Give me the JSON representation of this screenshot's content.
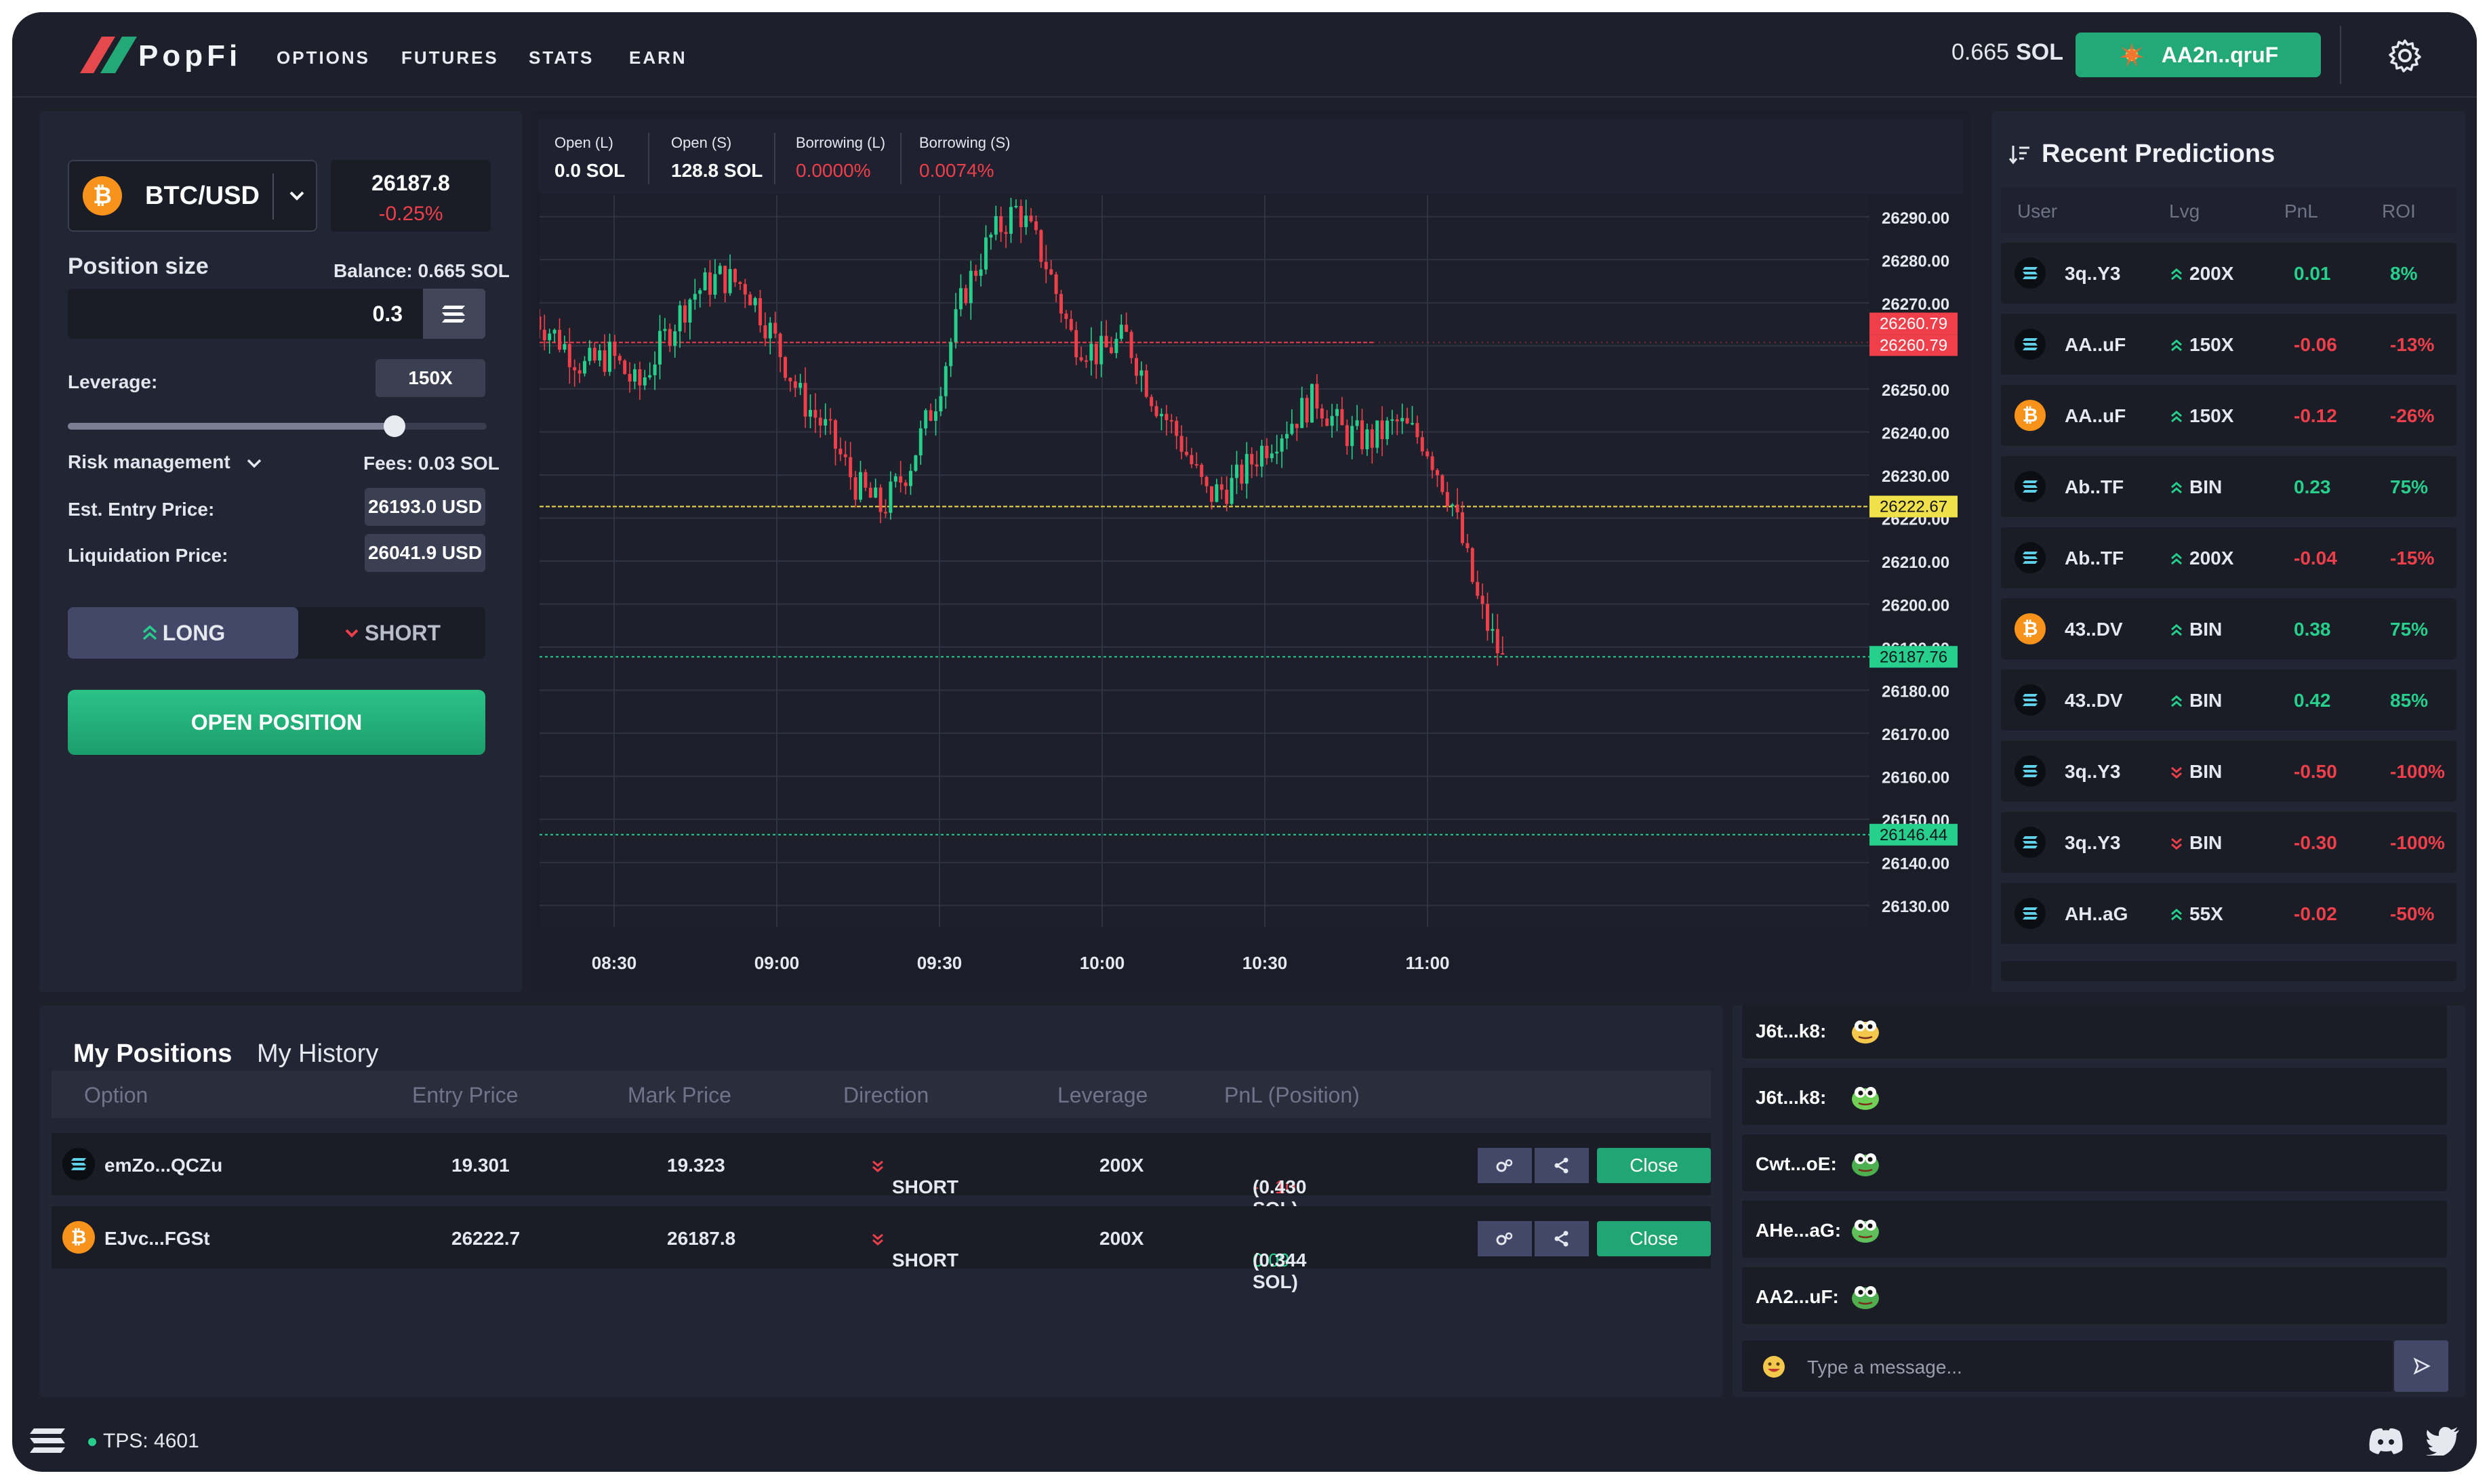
{
  "header": {
    "brand": "PopFi",
    "nav": [
      "OPTIONS",
      "FUTURES",
      "STATS",
      "EARN"
    ],
    "balance_value": "0.665",
    "balance_unit": "SOL",
    "wallet_label": "AA2n..qruF",
    "accent": "#23a878"
  },
  "trade": {
    "pair": "BTC/USD",
    "coin_symbol": "₿",
    "price": "26187.8",
    "change": "-0.25%",
    "position_size_label": "Position size",
    "balance_label": "Balance: 0.665 SOL",
    "size_value": "0.3",
    "leverage_label": "Leverage:",
    "leverage_value": "150X",
    "leverage_fraction": 0.78,
    "risk_label": "Risk management",
    "fees_label": "Fees: 0.03 SOL",
    "entry_label": "Est. Entry Price:",
    "entry_value": "26193.0 USD",
    "liq_label": "Liquidation Price:",
    "liq_value": "26041.9 USD",
    "long_label": "LONG",
    "short_label": "SHORT",
    "open_label": "OPEN POSITION"
  },
  "market_stats": [
    {
      "label": "Open (L)",
      "value": "0.0 SOL",
      "color": "#ffffff"
    },
    {
      "label": "Open (S)",
      "value": "128.8 SOL",
      "color": "#ffffff"
    },
    {
      "label": "Borrowing (L)",
      "value": "0.0000%",
      "color": "#ef3f4a"
    },
    {
      "label": "Borrowing (S)",
      "value": "0.0074%",
      "color": "#ef3f4a"
    }
  ],
  "chart_data": {
    "type": "line",
    "x_ticks": [
      "08:30",
      "09:00",
      "09:30",
      "10:00",
      "10:30",
      "11:00"
    ],
    "y_ticks": [
      "26290.00",
      "26280.00",
      "26270.00",
      "26260.00",
      "26250.00",
      "26240.00",
      "26230.00",
      "26220.00",
      "26210.00",
      "26200.00",
      "26190.00",
      "26180.00",
      "26170.00",
      "26160.00",
      "26150.00",
      "26140.00",
      "26130.00"
    ],
    "ylim": [
      26125,
      26295
    ],
    "x": [
      "08:15",
      "08:20",
      "08:25",
      "08:30",
      "08:35",
      "08:40",
      "08:45",
      "08:50",
      "08:55",
      "09:00",
      "09:05",
      "09:10",
      "09:15",
      "09:20",
      "09:25",
      "09:30",
      "09:35",
      "09:40",
      "09:45",
      "09:50",
      "09:55",
      "10:00",
      "10:05",
      "10:10",
      "10:15",
      "10:20",
      "10:25",
      "10:30",
      "10:35",
      "10:40",
      "10:45",
      "10:50",
      "10:55",
      "11:00",
      "11:05",
      "11:10",
      "11:15"
    ],
    "values": [
      26268,
      26262,
      26255,
      26258,
      26250,
      26262,
      26272,
      26276,
      26274,
      26262,
      26248,
      26240,
      26228,
      26222,
      26232,
      26248,
      26272,
      26285,
      26292,
      26280,
      26262,
      26258,
      26262,
      26248,
      26238,
      26225,
      26228,
      26236,
      26242,
      26248,
      26240,
      26238,
      26242,
      26238,
      26224,
      26200,
      26185
    ],
    "price_lines": [
      {
        "value": 26260.79,
        "label": "26260.79",
        "color": "#ef3f4a"
      },
      {
        "value": 26222.67,
        "label": "26222.67",
        "color": "#f0e04a"
      },
      {
        "value": 26187.76,
        "label": "26187.76",
        "color": "#26d08c"
      },
      {
        "value": 26146.44,
        "label": "26146.44",
        "color": "#26d08c"
      }
    ],
    "up_color": "#26d08c",
    "down_color": "#ef3f4a",
    "grid": true
  },
  "predictions": {
    "title": "Recent Predictions",
    "headers": [
      "User",
      "Lvg",
      "PnL",
      "ROI"
    ],
    "rows": [
      {
        "coin": "sol",
        "user": "3q..Y3",
        "dir": "up",
        "lvg": "200X",
        "pnl": "0.01",
        "roi": "8%",
        "pos": true
      },
      {
        "coin": "sol",
        "user": "AA..uF",
        "dir": "up",
        "lvg": "150X",
        "pnl": "-0.06",
        "roi": "-13%",
        "pos": false
      },
      {
        "coin": "btc",
        "user": "AA..uF",
        "dir": "up",
        "lvg": "150X",
        "pnl": "-0.12",
        "roi": "-26%",
        "pos": false
      },
      {
        "coin": "sol",
        "user": "Ab..TF",
        "dir": "up",
        "lvg": "BIN",
        "pnl": "0.23",
        "roi": "75%",
        "pos": true
      },
      {
        "coin": "sol",
        "user": "Ab..TF",
        "dir": "up",
        "lvg": "200X",
        "pnl": "-0.04",
        "roi": "-15%",
        "pos": false
      },
      {
        "coin": "btc",
        "user": "43..DV",
        "dir": "up",
        "lvg": "BIN",
        "pnl": "0.38",
        "roi": "75%",
        "pos": true
      },
      {
        "coin": "sol",
        "user": "43..DV",
        "dir": "up",
        "lvg": "BIN",
        "pnl": "0.42",
        "roi": "85%",
        "pos": true
      },
      {
        "coin": "sol",
        "user": "3q..Y3",
        "dir": "down",
        "lvg": "BIN",
        "pnl": "-0.50",
        "roi": "-100%",
        "pos": false
      },
      {
        "coin": "sol",
        "user": "3q..Y3",
        "dir": "down",
        "lvg": "BIN",
        "pnl": "-0.30",
        "roi": "-100%",
        "pos": false
      },
      {
        "coin": "sol",
        "user": "AH..aG",
        "dir": "up",
        "lvg": "55X",
        "pnl": "-0.02",
        "roi": "-50%",
        "pos": false
      }
    ]
  },
  "positions": {
    "tab_active": "My Positions",
    "tab_inactive": "My History",
    "headers": [
      "Option",
      "Entry Price",
      "Mark Price",
      "Direction",
      "Leverage",
      "PnL (Position)"
    ],
    "rows": [
      {
        "coin": "sol",
        "option": "emZo...QCZu",
        "entry": "19.301",
        "mark": "19.323",
        "direction": "SHORT",
        "leverage": "200X",
        "pnl": "-0.10 SOL",
        "position": "(0.430 SOL)",
        "pnl_pos": false,
        "close": "Close"
      },
      {
        "coin": "btc",
        "option": "EJvc...FGSt",
        "entry": "26222.7",
        "mark": "26187.8",
        "direction": "SHORT",
        "leverage": "200X",
        "pnl": "0.09 SOL",
        "position": "(0.344 SOL)",
        "pnl_pos": true,
        "close": "Close"
      }
    ]
  },
  "chat": {
    "messages": [
      {
        "user": "J6t...k8:",
        "emoji": "yellow-face",
        "color": "#f2c94c"
      },
      {
        "user": "J6t...k8:",
        "emoji": "rainbow-pepe",
        "color": "#6fcf57"
      },
      {
        "user": "Cwt...oE:",
        "emoji": "pepe-face",
        "color": "#4caf50"
      },
      {
        "user": "AHe...aG:",
        "emoji": "pepe-face",
        "color": "#5fbf5a"
      },
      {
        "user": "AA2...uF:",
        "emoji": "pepe-eyes",
        "color": "#4fae4f"
      }
    ],
    "placeholder": "Type a message..."
  },
  "footer": {
    "tps": "TPS: 4601"
  }
}
